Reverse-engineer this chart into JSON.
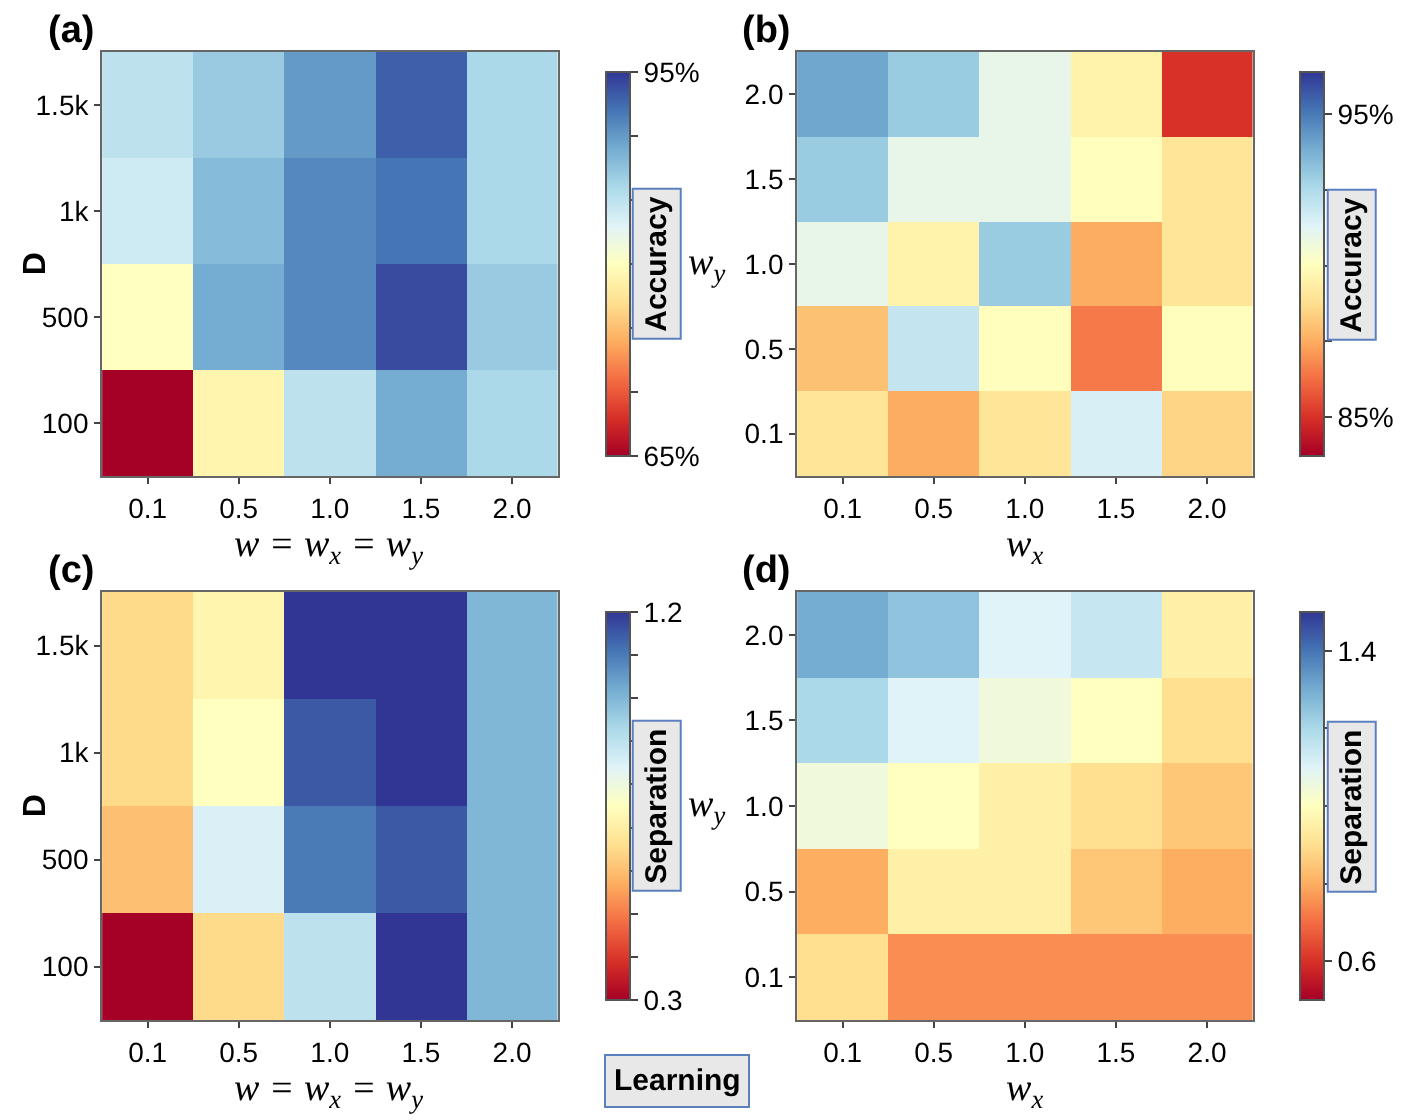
{
  "chart_data": [
    {
      "type": "heatmap",
      "categories": [
        "0.1",
        "0.5",
        "1.0",
        "1.5",
        "2.0"
      ],
      "y_categories": [
        "1.5k",
        "1k",
        "500",
        "100"
      ],
      "xlabel": "w = w$_{x}$ = w$_{y}$",
      "ylabel": "D",
      "clabel": "Accuracy",
      "annotations": [
        "(a)"
      ],
      "cells": [
        [
          85,
          87,
          90,
          93,
          86
        ],
        [
          84,
          88,
          91,
          92,
          86
        ],
        [
          80,
          89,
          91,
          94,
          87
        ],
        [
          65,
          79,
          85,
          89,
          86
        ]
      ],
      "clim": [
        65,
        95
      ],
      "cticks": [
        {
          "value": 65,
          "label": "65%"
        },
        {
          "value": 70,
          "label": null
        },
        {
          "value": 75,
          "label": null
        },
        {
          "value": 80,
          "label": null
        },
        {
          "value": 85,
          "label": null
        },
        {
          "value": 90,
          "label": null
        },
        {
          "value": 95,
          "label": "95%"
        }
      ]
    },
    {
      "type": "heatmap",
      "categories": [
        "0.1",
        "0.5",
        "1.0",
        "1.5",
        "2.0"
      ],
      "y_categories": [
        "2.0",
        "1.5",
        "1.0",
        "0.5",
        "0.1"
      ],
      "xlabel": "w$_{x}$",
      "ylabel": "w$_{y}$",
      "clabel": "Accuracy",
      "annotations": [
        "(b)"
      ],
      "cells": [
        [
          94,
          93,
          91,
          89.5,
          85
        ],
        [
          93,
          91,
          91,
          90,
          89
        ],
        [
          91,
          89.5,
          93,
          87.5,
          89
        ],
        [
          88,
          92,
          90,
          86.5,
          90
        ],
        [
          89,
          87.5,
          89,
          91.5,
          88.5
        ]
      ],
      "clim": [
        83.7,
        96.4
      ],
      "cticks": [
        {
          "value": 85,
          "label": "85%"
        },
        {
          "value": 87.5,
          "label": null
        },
        {
          "value": 90,
          "label": null
        },
        {
          "value": 92.5,
          "label": null
        },
        {
          "value": 95,
          "label": "95%"
        }
      ]
    },
    {
      "type": "heatmap",
      "categories": [
        "0.1",
        "0.5",
        "1.0",
        "1.5",
        "2.0"
      ],
      "y_categories": [
        "1.5k",
        "1k",
        "500",
        "100"
      ],
      "xlabel": "w = w$_{x}$ = w$_{y}$",
      "ylabel": "D",
      "clabel": "Separation",
      "annotations": [
        "(c)",
        "Learning"
      ],
      "cells": [
        [
          0.65,
          0.72,
          1.2,
          1.2,
          1.0
        ],
        [
          0.65,
          0.75,
          1.15,
          1.2,
          1.0
        ],
        [
          0.6,
          0.85,
          1.1,
          1.15,
          1.0
        ],
        [
          0.3,
          0.65,
          0.9,
          1.2,
          1.0
        ]
      ],
      "clim": [
        0.3,
        1.2
      ],
      "cticks": [
        0.3,
        {
          "value": 0.4,
          "label": null
        },
        {
          "value": 0.5,
          "label": null
        },
        {
          "value": 0.6,
          "label": null
        },
        {
          "value": 0.7,
          "label": null
        },
        {
          "value": 0.8,
          "label": null
        },
        {
          "value": 0.9,
          "label": null
        },
        {
          "value": 1.0,
          "label": null
        },
        {
          "value": 1.1,
          "label": null
        },
        1.2
      ]
    },
    {
      "type": "heatmap",
      "categories": [
        "0.1",
        "0.5",
        "1.0",
        "1.5",
        "2.0"
      ],
      "y_categories": [
        "2.0",
        "1.5",
        "1.0",
        "0.5",
        "0.1"
      ],
      "xlabel": "w$_{x}$",
      "ylabel": "w$_{y}$",
      "clabel": "Separation",
      "annotations": [
        "(d)"
      ],
      "cells": [
        [
          1.3,
          1.25,
          1.1,
          1.15,
          0.95
        ],
        [
          1.2,
          1.1,
          1.05,
          1.0,
          0.9
        ],
        [
          1.05,
          1.0,
          0.95,
          0.9,
          0.85
        ],
        [
          0.8,
          0.95,
          0.95,
          0.85,
          0.8
        ],
        [
          0.9,
          0.75,
          0.75,
          0.75,
          0.75
        ]
      ],
      "clim": [
        0.5,
        1.5
      ],
      "cticks": [
        0.6,
        {
          "value": 0.8,
          "label": null
        },
        {
          "value": 1.0,
          "label": null
        },
        {
          "value": 1.2,
          "label": null
        },
        1.4
      ]
    }
  ]
}
